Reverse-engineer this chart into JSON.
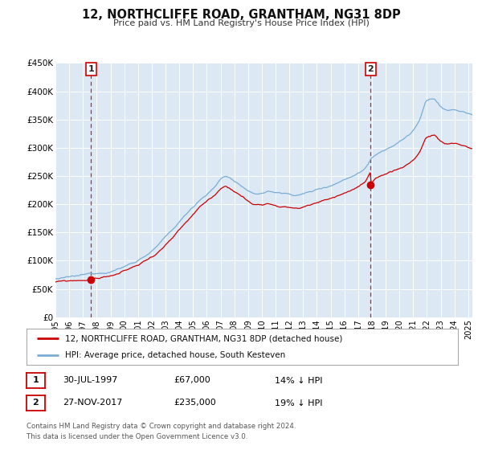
{
  "title": "12, NORTHCLIFFE ROAD, GRANTHAM, NG31 8DP",
  "subtitle": "Price paid vs. HM Land Registry's House Price Index (HPI)",
  "background_color": "#ffffff",
  "plot_bg_color": "#dce9f5",
  "grid_color": "#ffffff",
  "sale1_date_x": 1997.58,
  "sale1_value": 67000,
  "sale1_label": "1",
  "sale2_date_x": 2017.9,
  "sale2_value": 235000,
  "sale2_label": "2",
  "xmin": 1995.0,
  "xmax": 2025.3,
  "ymin": 0,
  "ymax": 450000,
  "yticks": [
    0,
    50000,
    100000,
    150000,
    200000,
    250000,
    300000,
    350000,
    400000,
    450000
  ],
  "ytick_labels": [
    "£0",
    "£50K",
    "£100K",
    "£150K",
    "£200K",
    "£250K",
    "£300K",
    "£350K",
    "£400K",
    "£450K"
  ],
  "xticks": [
    1995,
    1996,
    1997,
    1998,
    1999,
    2000,
    2001,
    2002,
    2003,
    2004,
    2005,
    2006,
    2007,
    2008,
    2009,
    2010,
    2011,
    2012,
    2013,
    2014,
    2015,
    2016,
    2017,
    2018,
    2019,
    2020,
    2021,
    2022,
    2023,
    2024,
    2025
  ],
  "price_line_color": "#cc0000",
  "hpi_line_color": "#7aadd4",
  "legend_box_label1": "12, NORTHCLIFFE ROAD, GRANTHAM, NG31 8DP (detached house)",
  "legend_box_label2": "HPI: Average price, detached house, South Kesteven",
  "annotation1_date": "30-JUL-1997",
  "annotation1_price": "£67,000",
  "annotation1_hpi": "14% ↓ HPI",
  "annotation2_date": "27-NOV-2017",
  "annotation2_price": "£235,000",
  "annotation2_hpi": "19% ↓ HPI",
  "footnote": "Contains HM Land Registry data © Crown copyright and database right 2024.\nThis data is licensed under the Open Government Licence v3.0."
}
